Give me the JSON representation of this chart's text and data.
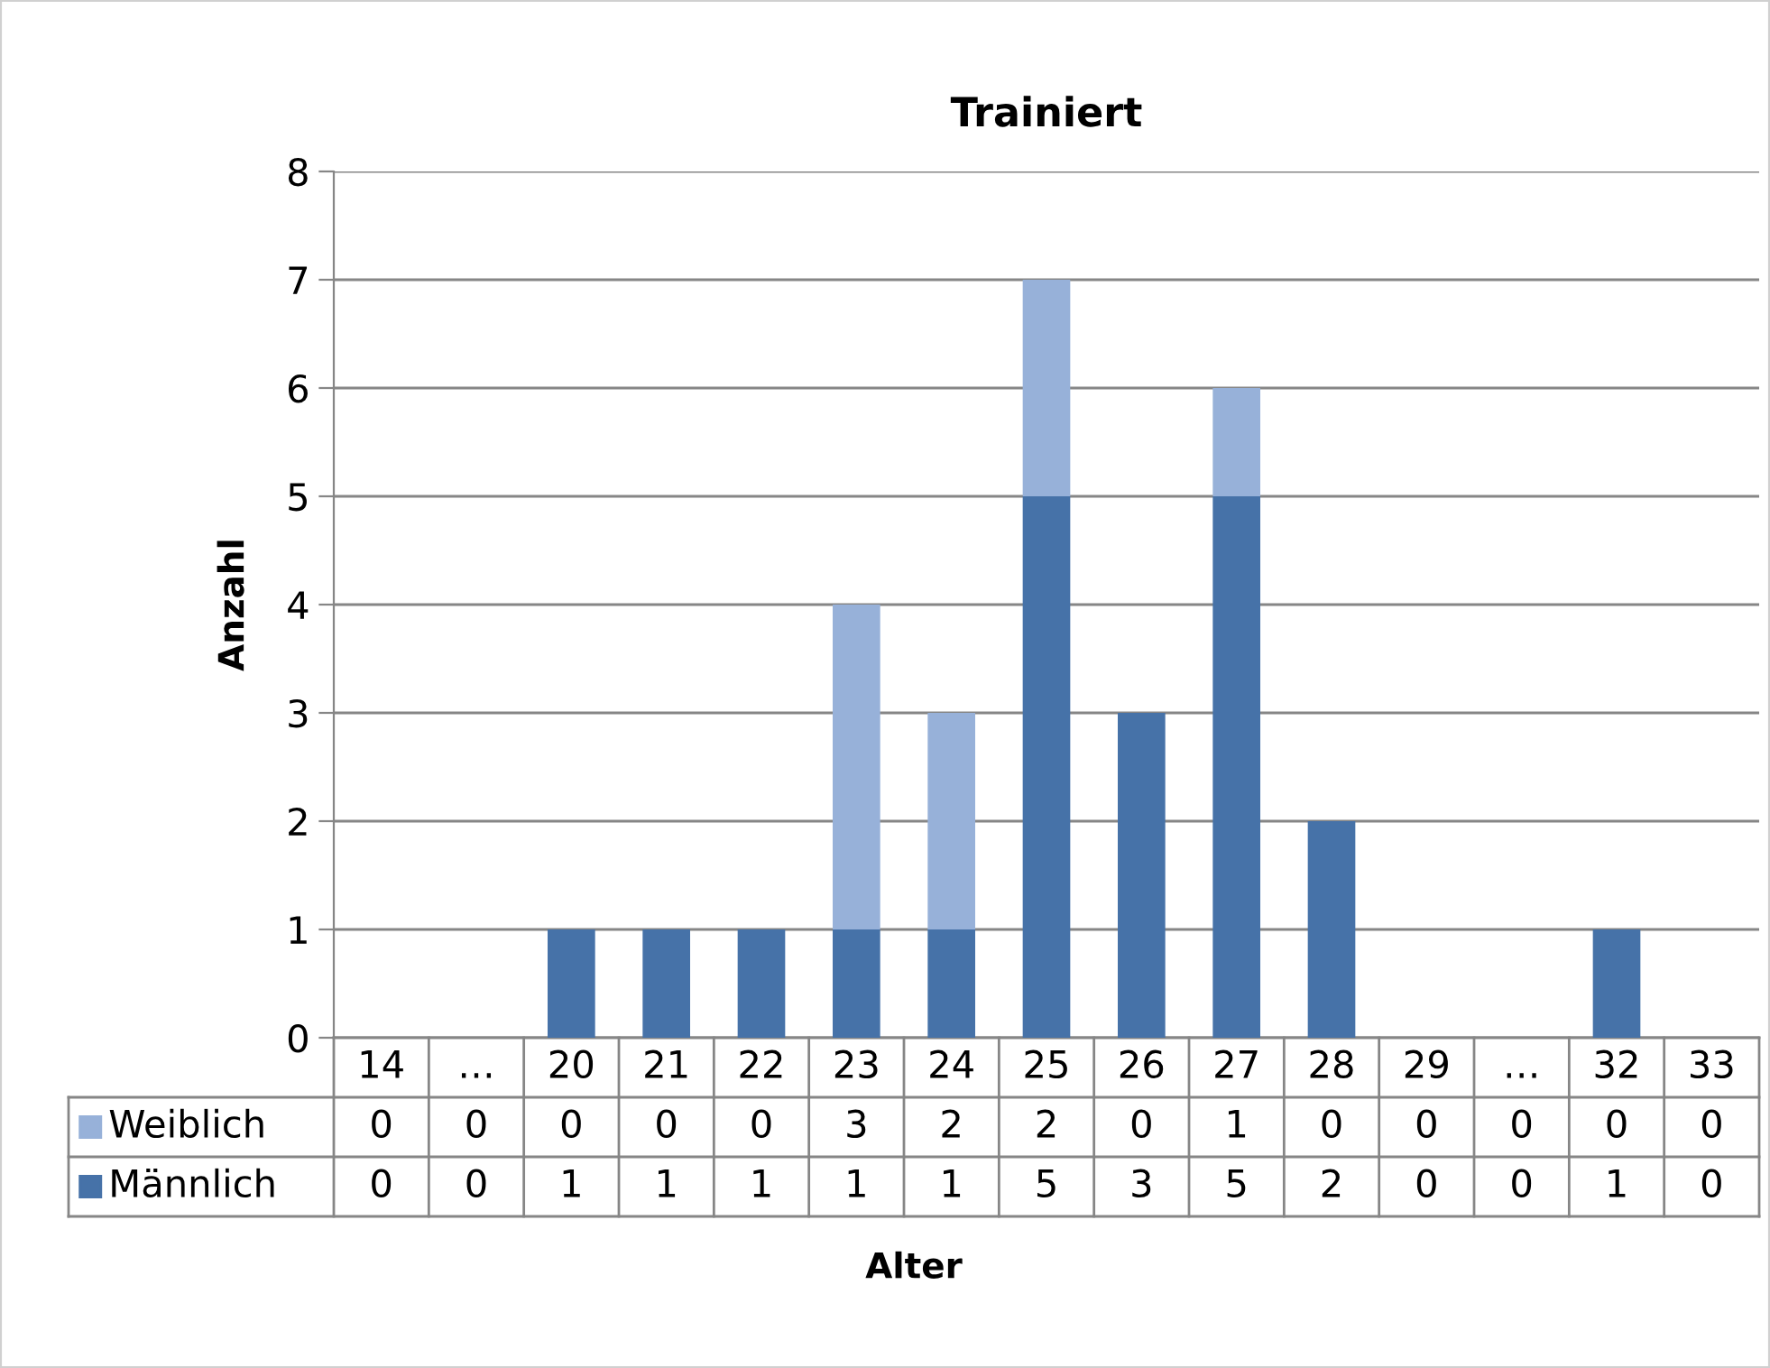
{
  "chart_data": {
    "type": "bar",
    "title": "Trainiert",
    "xlabel": "Alter",
    "ylabel": "Anzahl",
    "stacked": true,
    "categories": [
      "14",
      "…",
      "20",
      "21",
      "22",
      "23",
      "24",
      "25",
      "26",
      "27",
      "28",
      "29",
      "…",
      "32",
      "33"
    ],
    "series": [
      {
        "name": "Männlich",
        "color": "#4672a8",
        "values": [
          0,
          0,
          1,
          1,
          1,
          1,
          1,
          5,
          3,
          5,
          2,
          0,
          0,
          1,
          0
        ]
      },
      {
        "name": "Weiblich",
        "color": "#97b1d9",
        "values": [
          0,
          0,
          0,
          0,
          0,
          3,
          2,
          2,
          0,
          1,
          0,
          0,
          0,
          0,
          0
        ]
      }
    ],
    "ylim": [
      0,
      8
    ],
    "yticks": [
      0,
      1,
      2,
      3,
      4,
      5,
      6,
      7,
      8
    ],
    "grid": "y",
    "data_labels": true,
    "legend": "bottom"
  }
}
